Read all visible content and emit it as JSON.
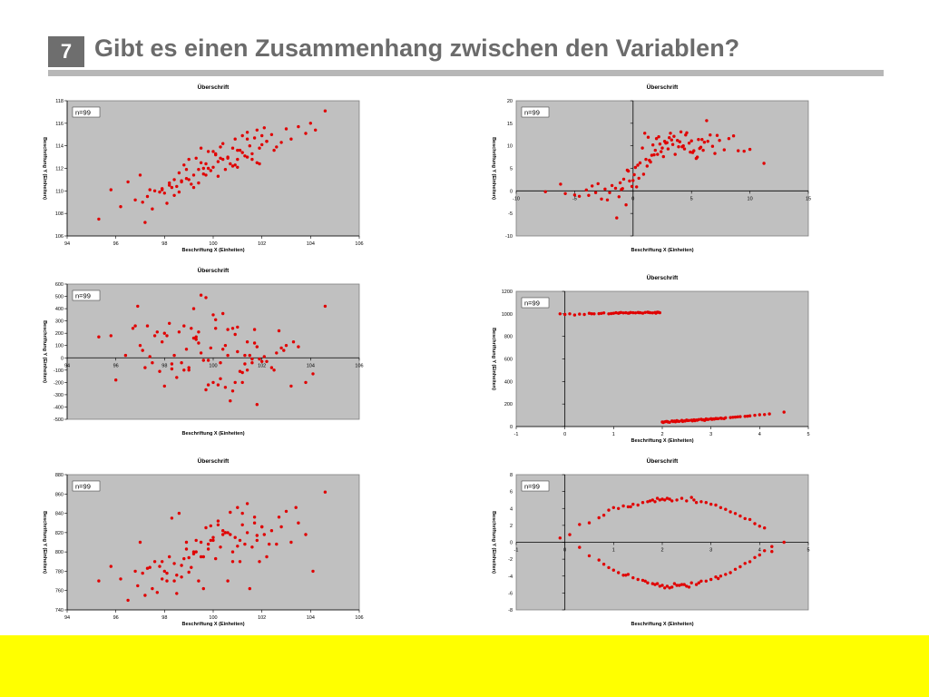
{
  "slide": {
    "number": "7",
    "title": "Gibt es einen Zusammenhang zwischen den Variablen?"
  },
  "colors": {
    "point": "#e00000",
    "plot_bg": "#c0c0c0",
    "footer": "#ffff00",
    "title": "#6b6b6b"
  },
  "chart_data": [
    {
      "type": "scatter",
      "title": "Überschrift",
      "xlabel": "Beschriftung X (Einheiten)",
      "ylabel": "Beschriftung Y (Einheiten)",
      "annotation": "n=99",
      "xlim": [
        94,
        106
      ],
      "ylim": [
        106,
        118
      ],
      "xticks": [
        94,
        96,
        98,
        100,
        102,
        104,
        106
      ],
      "yticks": [
        106,
        108,
        110,
        112,
        114,
        116,
        118
      ],
      "x": [
        95.3,
        95.8,
        96.2,
        96.5,
        96.8,
        97.0,
        97.2,
        97.3,
        97.5,
        97.6,
        97.8,
        97.9,
        98.0,
        98.1,
        98.2,
        98.3,
        98.4,
        98.5,
        98.6,
        98.7,
        98.8,
        98.9,
        99.0,
        99.1,
        99.2,
        99.3,
        99.4,
        99.5,
        99.6,
        99.7,
        99.8,
        99.9,
        100.0,
        100.1,
        100.2,
        100.3,
        100.4,
        100.5,
        100.6,
        100.7,
        100.8,
        100.9,
        101.0,
        101.1,
        101.2,
        101.3,
        101.4,
        101.5,
        101.6,
        101.7,
        101.8,
        101.9,
        102.0,
        102.1,
        102.2,
        102.4,
        102.6,
        102.8,
        103.0,
        103.2,
        103.5,
        103.8,
        104.0,
        104.2,
        104.6,
        97.1,
        97.4,
        98.2,
        98.6,
        99.0,
        99.4,
        99.8,
        100.2,
        100.6,
        101.0,
        101.4,
        101.8,
        102.2,
        99.6,
        100.4,
        101.2,
        98.9,
        100.0,
        101.6,
        102.0,
        99.2,
        100.8,
        101.4,
        98.4,
        97.9,
        100.3,
        101.0,
        99.5,
        102.5,
        100.1,
        99.7,
        101.9,
        98.7,
        100.9
      ],
      "y": [
        107.5,
        110.1,
        108.6,
        110.8,
        109.2,
        111.4,
        107.2,
        109.5,
        108.4,
        110.0,
        109.9,
        110.2,
        109.8,
        108.9,
        110.5,
        110.3,
        111.0,
        110.4,
        111.6,
        110.8,
        112.3,
        111.1,
        112.8,
        110.6,
        111.4,
        112.9,
        111.9,
        113.8,
        112.0,
        112.4,
        113.5,
        111.8,
        112.1,
        113.2,
        112.6,
        113.9,
        114.2,
        111.9,
        113.0,
        112.4,
        113.8,
        114.6,
        112.8,
        113.6,
        114.9,
        113.1,
        115.2,
        114.0,
        113.3,
        114.7,
        115.4,
        113.8,
        114.1,
        115.6,
        114.4,
        115.0,
        113.9,
        114.3,
        115.5,
        114.6,
        115.7,
        115.1,
        116.0,
        115.4,
        117.1,
        109.0,
        110.1,
        110.7,
        109.9,
        111.0,
        110.7,
        112.0,
        111.3,
        112.9,
        112.1,
        113.0,
        112.5,
        114.4,
        111.5,
        112.8,
        113.4,
        111.9,
        113.5,
        112.8,
        114.9,
        110.3,
        112.2,
        114.6,
        109.6,
        110.1,
        112.9,
        113.6,
        112.5,
        113.6,
        113.3,
        111.4,
        112.4,
        110.9,
        112.3
      ]
    },
    {
      "type": "scatter",
      "title": "Überschrift",
      "xlabel": "Beschriftung X (Einheiten)",
      "ylabel": "Beschriftung Y (Einheiten)",
      "annotation": "n=99",
      "xlim": [
        -10,
        15
      ],
      "ylim": [
        -10,
        20
      ],
      "xticks": [
        -10,
        -5,
        0,
        5,
        10,
        15
      ],
      "yticks": [
        -10,
        -5,
        0,
        5,
        10,
        15,
        20
      ],
      "x": [
        -7.5,
        -6.2,
        -5.8,
        -5.0,
        -4.6,
        -4.0,
        -3.5,
        -3.2,
        -3.0,
        -2.7,
        -2.4,
        -2.0,
        -1.8,
        -1.5,
        -1.2,
        -1.0,
        -0.8,
        -0.5,
        -0.3,
        -0.1,
        0.1,
        0.2,
        0.4,
        0.6,
        0.8,
        1.0,
        1.1,
        1.3,
        1.5,
        1.7,
        1.9,
        2.0,
        2.2,
        2.4,
        2.6,
        2.8,
        3.0,
        3.2,
        3.4,
        3.6,
        3.8,
        4.0,
        4.2,
        4.4,
        4.6,
        4.8,
        5.0,
        5.2,
        5.4,
        5.6,
        5.8,
        6.0,
        6.3,
        6.6,
        7.0,
        7.4,
        7.8,
        8.2,
        8.6,
        9.0,
        9.5,
        10.0,
        11.2,
        -1.4,
        -0.6,
        0.3,
        0.9,
        1.4,
        2.1,
        2.7,
        3.3,
        3.9,
        4.5,
        5.1,
        5.7,
        6.4,
        7.2,
        -2.2,
        -0.9,
        0.5,
        1.6,
        2.5,
        3.5,
        4.3,
        5.5,
        6.1,
        -3.8,
        -1.1,
        0.0,
        1.2,
        2.3,
        3.1,
        4.1,
        4.9,
        5.9,
        -0.4,
        1.8,
        2.9,
        6.8
      ],
      "y": [
        -0.2,
        1.5,
        -0.6,
        -0.9,
        -1.2,
        0.2,
        1.1,
        -0.4,
        1.6,
        -1.8,
        0.4,
        -0.4,
        1.2,
        0.6,
        -1.3,
        0.3,
        2.6,
        4.6,
        2.2,
        1.0,
        3.6,
        5.2,
        5.7,
        6.2,
        9.5,
        12.8,
        7.0,
        11.9,
        6.4,
        10.2,
        9.0,
        11.6,
        12.0,
        8.7,
        7.6,
        10.6,
        9.3,
        12.8,
        10.3,
        8.1,
        11.2,
        10.9,
        9.8,
        9.3,
        12.9,
        10.6,
        11.1,
        8.9,
        7.2,
        11.4,
        9.7,
        9.0,
        15.6,
        12.4,
        8.3,
        11.2,
        9.1,
        11.6,
        12.2,
        8.9,
        8.8,
        9.2,
        6.1,
        -6.0,
        -3.1,
        0.9,
        3.7,
        6.8,
        8.1,
        11.0,
        11.3,
        9.8,
        12.4,
        8.5,
        9.4,
        11.0,
        12.3,
        -2.0,
        0.5,
        2.8,
        7.9,
        9.5,
        12.1,
        10.0,
        7.5,
        10.8,
        -1.0,
        1.8,
        2.3,
        5.5,
        10.4,
        11.8,
        13.1,
        8.6,
        11.4,
        4.4,
        8.0,
        10.7,
        9.9
      ]
    },
    {
      "type": "scatter",
      "title": "Überschrift",
      "xlabel": "Beschriftung X (Einheiten)",
      "ylabel": "Beschriftung Y (Einheiten)",
      "annotation": "n=99",
      "xlim": [
        94,
        106
      ],
      "ylim": [
        -500,
        600
      ],
      "xticks": [
        94,
        96,
        98,
        100,
        102,
        104,
        106
      ],
      "yticks": [
        -500,
        -400,
        -300,
        -200,
        -100,
        0,
        100,
        200,
        300,
        400,
        500,
        600
      ],
      "x": [
        95.3,
        95.8,
        96.0,
        96.4,
        96.7,
        96.9,
        97.1,
        97.3,
        97.5,
        97.6,
        97.8,
        97.9,
        98.0,
        98.2,
        98.3,
        98.4,
        98.6,
        98.7,
        98.8,
        99.0,
        99.1,
        99.2,
        99.3,
        99.4,
        99.5,
        99.6,
        99.7,
        99.8,
        99.9,
        100.0,
        100.1,
        100.2,
        100.3,
        100.4,
        100.5,
        100.6,
        100.7,
        100.8,
        100.9,
        101.0,
        101.1,
        101.2,
        101.3,
        101.4,
        101.5,
        101.6,
        101.7,
        101.8,
        101.9,
        102.0,
        102.2,
        102.4,
        102.6,
        102.8,
        103.0,
        103.2,
        103.5,
        103.8,
        104.1,
        104.6,
        97.0,
        97.7,
        98.1,
        98.5,
        98.9,
        99.3,
        99.7,
        100.1,
        100.5,
        100.9,
        101.3,
        101.7,
        102.1,
        102.5,
        99.2,
        100.6,
        101.4,
        98.3,
        99.8,
        101.0,
        97.4,
        102.7,
        100.3,
        99.5,
        98.8,
        101.8,
        100.0,
        96.8,
        103.3,
        99.0,
        100.8,
        102.9,
        98.0,
        101.2,
        99.4,
        97.2,
        100.4,
        101.6
      ],
      "y": [
        170,
        180,
        -180,
        20,
        240,
        420,
        60,
        260,
        -40,
        180,
        -110,
        130,
        -230,
        280,
        -90,
        20,
        210,
        -40,
        260,
        -100,
        240,
        400,
        170,
        120,
        510,
        -20,
        490,
        -20,
        80,
        -200,
        240,
        -220,
        -40,
        360,
        100,
        230,
        -350,
        240,
        -200,
        250,
        -110,
        -200,
        20,
        130,
        20,
        -10,
        230,
        -380,
        -10,
        -30,
        -30,
        -80,
        40,
        80,
        100,
        -230,
        90,
        -200,
        -130,
        420,
        100,
        210,
        180,
        -160,
        70,
        150,
        -260,
        310,
        -240,
        190,
        -50,
        120,
        10,
        -100,
        160,
        20,
        -100,
        -50,
        -220,
        50,
        10,
        220,
        -170,
        40,
        -100,
        90,
        350,
        260,
        130,
        -80,
        -270,
        60,
        200,
        -120,
        210,
        -80,
        70,
        -40
      ]
    },
    {
      "type": "scatter",
      "title": "Überschrift",
      "xlabel": "Beschriftung X (Einheiten)",
      "ylabel": "Beschriftung Y (Einheiten)",
      "annotation": "n=99",
      "xlim": [
        -1,
        5
      ],
      "ylim": [
        0,
        1200
      ],
      "xticks": [
        -1,
        0,
        1,
        2,
        3,
        4,
        5
      ],
      "yticks": [
        0,
        200,
        400,
        600,
        800,
        1000,
        1200
      ],
      "x": [
        -0.1,
        0.0,
        0.1,
        0.2,
        0.3,
        0.4,
        0.5,
        0.6,
        0.7,
        0.8,
        0.9,
        1.0,
        1.05,
        1.1,
        1.15,
        1.2,
        1.25,
        1.3,
        1.35,
        1.4,
        1.45,
        1.5,
        1.55,
        1.6,
        1.65,
        1.7,
        1.75,
        1.8,
        1.85,
        1.9,
        1.95,
        0.95,
        1.12,
        1.32,
        1.52,
        1.72,
        1.92,
        0.75,
        0.55,
        1.87,
        2.0,
        2.05,
        2.1,
        2.15,
        2.2,
        2.25,
        2.3,
        2.35,
        2.4,
        2.45,
        2.5,
        2.55,
        2.6,
        2.65,
        2.7,
        2.75,
        2.8,
        2.85,
        2.9,
        2.95,
        3.0,
        3.05,
        3.1,
        3.15,
        3.2,
        3.3,
        3.4,
        3.5,
        3.6,
        3.7,
        3.8,
        3.9,
        4.0,
        4.2,
        4.5,
        2.12,
        2.22,
        2.32,
        2.42,
        2.52,
        2.62,
        2.72,
        2.82,
        2.92,
        3.02,
        3.12,
        3.22,
        3.45,
        3.75,
        2.02,
        2.27,
        2.47,
        2.67,
        2.87,
        3.07,
        3.27,
        4.1,
        3.55,
        2.08
      ],
      "y": [
        1000,
        995,
        1000,
        990,
        998,
        995,
        1005,
        1000,
        1002,
        1008,
        1000,
        1005,
        1010,
        1005,
        1012,
        1008,
        1010,
        1006,
        1012,
        1010,
        1008,
        1012,
        1010,
        1006,
        1012,
        1015,
        1010,
        1008,
        1012,
        1015,
        1010,
        1003,
        1009,
        1007,
        1011,
        1013,
        1014,
        1004,
        1001,
        1006,
        40,
        42,
        45,
        38,
        50,
        48,
        52,
        46,
        55,
        50,
        58,
        54,
        56,
        60,
        58,
        62,
        65,
        60,
        68,
        64,
        70,
        68,
        72,
        70,
        75,
        78,
        80,
        84,
        88,
        90,
        95,
        100,
        105,
        112,
        128,
        40,
        44,
        47,
        45,
        53,
        50,
        56,
        60,
        63,
        64,
        70,
        72,
        82,
        92,
        36,
        42,
        49,
        52,
        55,
        66,
        70,
        106,
        86,
        45
      ]
    },
    {
      "type": "scatter",
      "title": "Überschrift",
      "xlabel": "Beschriftung X (Einheiten)",
      "ylabel": "Beschriftung Y (Einheiten)",
      "annotation": "n=99",
      "xlim": [
        94,
        106
      ],
      "ylim": [
        740,
        880
      ],
      "xticks": [
        94,
        96,
        98,
        100,
        102,
        104,
        106
      ],
      "yticks": [
        740,
        760,
        780,
        800,
        820,
        840,
        860,
        880
      ],
      "x": [
        95.3,
        95.8,
        96.2,
        96.5,
        96.8,
        97.0,
        97.2,
        97.3,
        97.5,
        97.6,
        97.8,
        97.9,
        98.0,
        98.1,
        98.2,
        98.3,
        98.4,
        98.5,
        98.6,
        98.7,
        98.8,
        98.9,
        99.0,
        99.1,
        99.2,
        99.3,
        99.4,
        99.5,
        99.6,
        99.7,
        99.8,
        99.9,
        100.0,
        100.1,
        100.2,
        100.3,
        100.4,
        100.5,
        100.6,
        100.7,
        100.8,
        100.9,
        101.0,
        101.1,
        101.2,
        101.3,
        101.4,
        101.5,
        101.6,
        101.7,
        101.8,
        101.9,
        102.0,
        102.1,
        102.2,
        102.4,
        102.6,
        102.8,
        103.0,
        103.2,
        103.5,
        103.8,
        104.1,
        104.6,
        96.9,
        97.1,
        97.4,
        97.7,
        98.1,
        98.4,
        98.7,
        99.0,
        99.3,
        99.6,
        99.9,
        100.2,
        100.5,
        100.8,
        101.1,
        101.4,
        101.7,
        102.0,
        102.3,
        99.5,
        100.0,
        100.6,
        101.2,
        98.9,
        99.8,
        100.4,
        101.0,
        97.9,
        98.5,
        101.8,
        102.7,
        99.2,
        100.7,
        103.4
      ],
      "y": [
        770,
        785,
        772,
        750,
        780,
        810,
        755,
        783,
        762,
        790,
        785,
        772,
        780,
        778,
        795,
        835,
        770,
        757,
        840,
        774,
        793,
        803,
        779,
        784,
        798,
        812,
        770,
        810,
        795,
        825,
        808,
        827,
        812,
        793,
        832,
        805,
        818,
        820,
        770,
        841,
        790,
        815,
        806,
        790,
        828,
        808,
        850,
        762,
        805,
        830,
        812,
        790,
        826,
        818,
        795,
        822,
        808,
        826,
        842,
        810,
        830,
        818,
        780,
        862,
        765,
        778,
        784,
        758,
        770,
        788,
        786,
        794,
        800,
        762,
        812,
        828,
        820,
        800,
        812,
        820,
        836,
        826,
        808,
        795,
        815,
        820,
        840,
        810,
        803,
        822,
        846,
        790,
        776,
        817,
        836,
        800,
        818,
        846
      ]
    },
    {
      "type": "scatter",
      "title": "Überschrift",
      "xlabel": "Beschriftung X (Einheiten)",
      "ylabel": "Beschriftung Y (Einheiten)",
      "annotation": "n=99",
      "xlim": [
        -1,
        5
      ],
      "ylim": [
        -8,
        8
      ],
      "xticks": [
        -1,
        0,
        1,
        2,
        3,
        4,
        5
      ],
      "yticks": [
        -8,
        -6,
        -4,
        -2,
        0,
        2,
        4,
        6,
        8
      ],
      "x": [
        -0.1,
        0.1,
        0.3,
        0.5,
        0.7,
        0.8,
        0.9,
        1.0,
        1.1,
        1.2,
        1.3,
        1.4,
        1.5,
        1.6,
        1.7,
        1.8,
        1.85,
        1.9,
        1.95,
        2.0,
        2.05,
        2.1,
        2.15,
        2.2,
        2.3,
        2.4,
        2.5,
        2.6,
        2.7,
        2.8,
        2.9,
        3.0,
        3.1,
        3.2,
        3.3,
        3.4,
        3.5,
        3.6,
        3.7,
        3.8,
        3.9,
        4.0,
        4.1,
        4.25,
        4.5,
        0.3,
        0.5,
        0.7,
        0.8,
        0.9,
        1.0,
        1.1,
        1.2,
        1.3,
        1.4,
        1.5,
        1.6,
        1.7,
        1.8,
        1.85,
        1.9,
        1.95,
        2.0,
        2.05,
        2.1,
        2.15,
        2.2,
        2.3,
        2.4,
        2.5,
        2.6,
        2.7,
        2.8,
        2.9,
        3.0,
        3.1,
        3.2,
        3.3,
        3.4,
        3.5,
        3.6,
        3.7,
        3.8,
        3.9,
        4.0,
        4.1,
        4.25,
        1.25,
        1.65,
        2.25,
        2.35,
        2.75,
        3.15,
        2.45,
        1.75,
        2.55,
        1.35,
        2.65
      ],
      "y": [
        0.5,
        0.9,
        2.1,
        2.3,
        2.9,
        3.2,
        3.8,
        4.1,
        4.0,
        4.3,
        4.2,
        4.5,
        4.4,
        4.7,
        4.8,
        5.0,
        4.8,
        5.2,
        5.0,
        5.1,
        5.0,
        5.2,
        5.1,
        4.9,
        5.0,
        5.2,
        4.9,
        5.3,
        4.7,
        4.8,
        4.7,
        4.5,
        4.4,
        4.1,
        3.9,
        3.6,
        3.4,
        3.1,
        2.8,
        2.7,
        2.2,
        1.9,
        1.7,
        -1.1,
        0.0,
        -0.6,
        -1.6,
        -2.1,
        -2.6,
        -3.0,
        -3.3,
        -3.6,
        -3.9,
        -3.8,
        -4.2,
        -4.4,
        -4.5,
        -4.8,
        -4.9,
        -5.0,
        -4.9,
        -5.2,
        -5.1,
        -5.4,
        -5.2,
        -5.4,
        -5.3,
        -5.1,
        -5.0,
        -5.2,
        -4.8,
        -5.0,
        -4.6,
        -4.6,
        -4.4,
        -4.1,
        -4.0,
        -3.8,
        -3.6,
        -3.2,
        -2.9,
        -2.5,
        -2.3,
        -1.8,
        -1.5,
        -1.0,
        -0.5,
        -3.9,
        -4.6,
        -4.9,
        -5.1,
        -4.8,
        -4.3,
        -5.0,
        4.9,
        -5.3,
        4.2,
        5.0
      ]
    }
  ]
}
